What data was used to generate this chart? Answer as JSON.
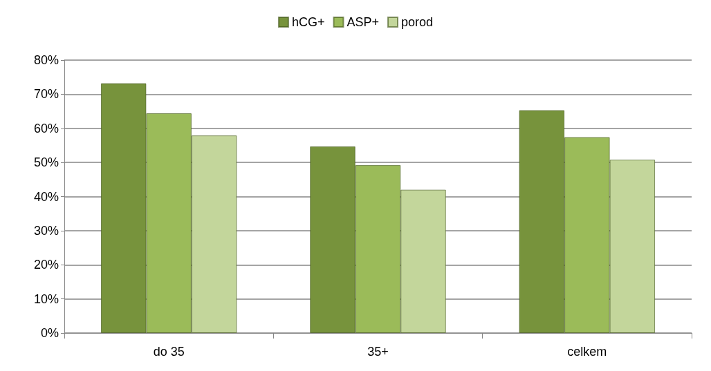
{
  "chart_data": {
    "type": "bar",
    "categories": [
      "do 35",
      "35+",
      "celkem"
    ],
    "series": [
      {
        "name": "hCG+",
        "color": "#77933c",
        "values": [
          73.2,
          54.7,
          65.3
        ]
      },
      {
        "name": "ASP+",
        "color": "#9bbb59",
        "values": [
          64.4,
          49.2,
          57.4
        ]
      },
      {
        "name": "porod",
        "color": "#c3d69b",
        "values": [
          57.9,
          42.0,
          50.8
        ]
      }
    ],
    "ylim": [
      0,
      80
    ],
    "yticks": [
      {
        "value": 0,
        "label": "0%"
      },
      {
        "value": 10,
        "label": "10%"
      },
      {
        "value": 20,
        "label": "20%"
      },
      {
        "value": 30,
        "label": "30%"
      },
      {
        "value": 40,
        "label": "40%"
      },
      {
        "value": 50,
        "label": "50%"
      },
      {
        "value": 60,
        "label": "60%"
      },
      {
        "value": 70,
        "label": "70%"
      },
      {
        "value": 80,
        "label": "80%"
      }
    ],
    "grid": "y",
    "legend": "top"
  }
}
